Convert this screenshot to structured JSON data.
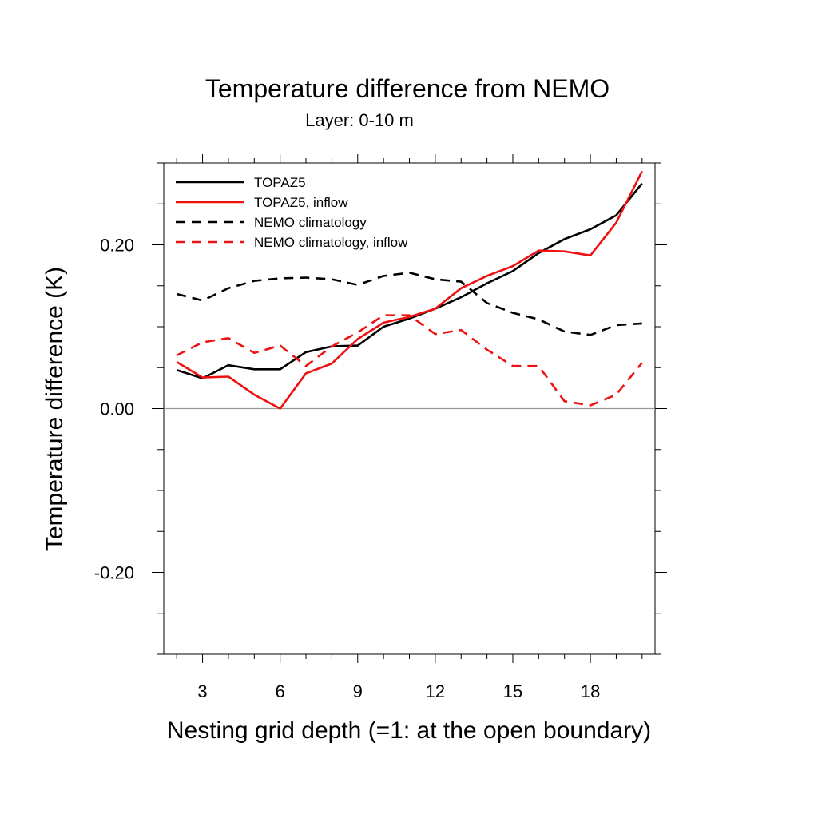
{
  "chart_data": {
    "type": "line",
    "title": "Temperature difference from NEMO",
    "subtitle": "Layer: 0-10 m",
    "xlabel": "Nesting grid depth (=1: at the open boundary)",
    "ylabel": "Temperature difference (K)",
    "xlim": [
      1.5,
      20.5
    ],
    "ylim": [
      -0.3,
      0.3
    ],
    "x_ticks": [
      3,
      6,
      9,
      12,
      15,
      18
    ],
    "x_tick_labels": [
      "3",
      "6",
      "9",
      "12",
      "15",
      "18"
    ],
    "y_ticks": [
      -0.2,
      0.0,
      0.2
    ],
    "y_tick_labels": [
      "-0.20",
      "0.00",
      "0.20"
    ],
    "zero_line": true,
    "legend_position": "top-left",
    "x": [
      2,
      3,
      4,
      5,
      6,
      7,
      8,
      9,
      10,
      11,
      12,
      13,
      14,
      15,
      16,
      17,
      18,
      19,
      20
    ],
    "series": [
      {
        "name": "TOPAZ5",
        "color": "#000000",
        "dash": "solid",
        "values": [
          0.047,
          0.037,
          0.053,
          0.048,
          0.048,
          0.069,
          0.076,
          0.077,
          0.1,
          0.11,
          0.122,
          0.136,
          0.153,
          0.168,
          0.19,
          0.207,
          0.219,
          0.236,
          0.275
        ]
      },
      {
        "name": "TOPAZ5, inflow",
        "color": "#ee1111",
        "dash": "solid",
        "values": [
          0.057,
          0.038,
          0.039,
          0.017,
          0.0,
          0.043,
          0.055,
          0.085,
          0.105,
          0.112,
          0.122,
          0.147,
          0.162,
          0.174,
          0.193,
          0.192,
          0.187,
          0.227,
          0.29
        ]
      },
      {
        "name": "NEMO climatology",
        "color": "#000000",
        "dash": "dashed",
        "values": [
          0.14,
          0.132,
          0.147,
          0.156,
          0.159,
          0.16,
          0.158,
          0.151,
          0.162,
          0.166,
          0.158,
          0.155,
          0.129,
          0.117,
          0.109,
          0.094,
          0.09,
          0.102,
          0.104
        ]
      },
      {
        "name": "NEMO climatology, inflow",
        "color": "#ee1111",
        "dash": "dashed",
        "values": [
          0.065,
          0.081,
          0.086,
          0.068,
          0.077,
          0.052,
          0.076,
          0.093,
          0.114,
          0.114,
          0.091,
          0.096,
          0.072,
          0.052,
          0.052,
          0.009,
          0.004,
          0.017,
          0.056
        ]
      }
    ]
  }
}
